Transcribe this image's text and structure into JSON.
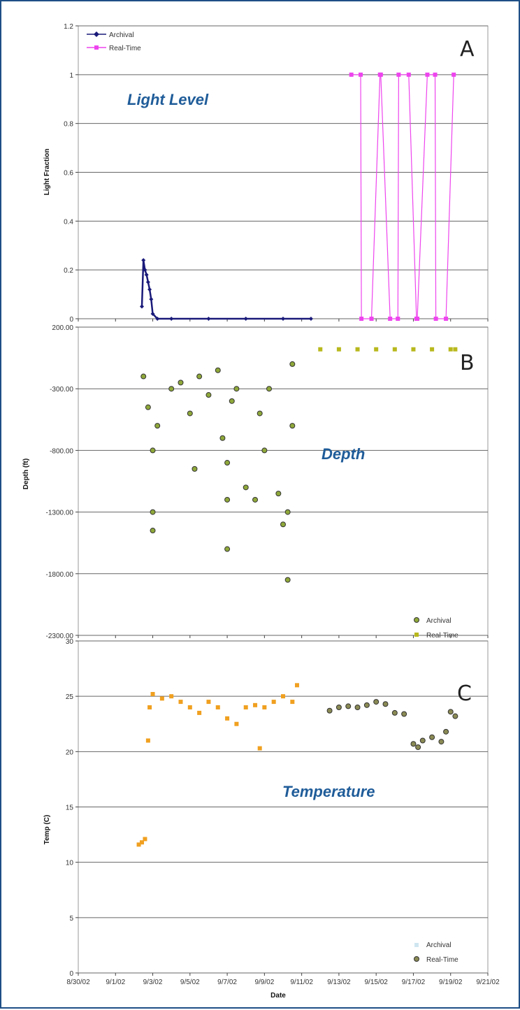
{
  "chart_data": [
    {
      "id": "A",
      "type": "line",
      "panel_letter": "A",
      "caption": "Light Level",
      "ylabel": "Light Fraction",
      "ylim": [
        0,
        1.2
      ],
      "yticks": [
        "0",
        "0.2",
        "0.4",
        "0.6",
        "0.8",
        "1",
        "1.2"
      ],
      "xlim": [
        "2002-08-30",
        "2002-09-21"
      ],
      "grid": true,
      "legend_position": "top-left",
      "series": [
        {
          "name": "Archival",
          "color": "#1a1a7a",
          "x": [
            "2002-09-02 10:00",
            "2002-09-02 12:00",
            "2002-09-02 14:00",
            "2002-09-02 16:00",
            "2002-09-02 18:00",
            "2002-09-02 20:00",
            "2002-09-02 22:00",
            "2002-09-03 00:00",
            "2002-09-03 06:00",
            "2002-09-04 00:00",
            "2002-09-06 00:00",
            "2002-09-08 00:00",
            "2002-09-10 00:00",
            "2002-09-11 12:00"
          ],
          "y": [
            0.05,
            0.24,
            0.2,
            0.18,
            0.15,
            0.12,
            0.08,
            0.02,
            0,
            0,
            0,
            0,
            0,
            0
          ]
        },
        {
          "name": "Real-Time",
          "color": "#ee44ee",
          "x": [
            "2002-09-13 16:00",
            "2002-09-14 04:00",
            "2002-09-14 05:00",
            "2002-09-14 18:00",
            "2002-09-15 05:00",
            "2002-09-15 06:00",
            "2002-09-15 18:00",
            "2002-09-16 04:00",
            "2002-09-16 05:00",
            "2002-09-16 18:00",
            "2002-09-17 04:00",
            "2002-09-17 05:00",
            "2002-09-17 18:00",
            "2002-09-18 04:00",
            "2002-09-18 05:00",
            "2002-09-18 18:00",
            "2002-09-19 04:00"
          ],
          "y": [
            1,
            1,
            0,
            0,
            1,
            1,
            0,
            0,
            1,
            1,
            0,
            0,
            1,
            1,
            0,
            0,
            1
          ]
        }
      ]
    },
    {
      "id": "B",
      "type": "scatter",
      "panel_letter": "B",
      "caption": "Depth",
      "ylabel": "Depth (ft)",
      "ylim": [
        -2300,
        200
      ],
      "yticks": [
        "-2300.00",
        "-1800.00",
        "-1300.00",
        "-800.00",
        "-300.00",
        "200.00"
      ],
      "xlim": [
        "2002-08-30",
        "2002-09-21"
      ],
      "grid": true,
      "legend_position": "bottom-right",
      "series": [
        {
          "name": "Archival",
          "color": "#8fa83a",
          "x": [
            "2002-09-02 12:00",
            "2002-09-02 18:00",
            "2002-09-03 00:00",
            "2002-09-03 00:00",
            "2002-09-03 00:00",
            "2002-09-03 06:00",
            "2002-09-04 00:00",
            "2002-09-04 12:00",
            "2002-09-05 00:00",
            "2002-09-05 06:00",
            "2002-09-05 12:00",
            "2002-09-06 00:00",
            "2002-09-06 12:00",
            "2002-09-06 18:00",
            "2002-09-07 00:00",
            "2002-09-07 00:00",
            "2002-09-07 00:00",
            "2002-09-07 06:00",
            "2002-09-07 12:00",
            "2002-09-08 00:00",
            "2002-09-08 12:00",
            "2002-09-08 18:00",
            "2002-09-09 00:00",
            "2002-09-09 06:00",
            "2002-09-09 18:00",
            "2002-09-10 00:00",
            "2002-09-10 06:00",
            "2002-09-10 06:00",
            "2002-09-10 12:00",
            "2002-09-10 12:00"
          ],
          "y": [
            -200,
            -450,
            -800,
            -1300,
            -1450,
            -600,
            -300,
            -250,
            -500,
            -950,
            -200,
            -350,
            -150,
            -700,
            -900,
            -1200,
            -1600,
            -400,
            -300,
            -1100,
            -1200,
            -500,
            -800,
            -300,
            -1150,
            -1400,
            -1300,
            -1850,
            -600,
            -100
          ]
        },
        {
          "name": "Real-Time",
          "color": "#b8b81e",
          "x": [
            "2002-09-12 00:00",
            "2002-09-13 00:00",
            "2002-09-14 00:00",
            "2002-09-15 00:00",
            "2002-09-16 00:00",
            "2002-09-17 00:00",
            "2002-09-18 00:00",
            "2002-09-19 00:00",
            "2002-09-19 06:00"
          ],
          "y": [
            20,
            20,
            20,
            20,
            20,
            20,
            20,
            20,
            20
          ]
        }
      ]
    },
    {
      "id": "C",
      "type": "scatter",
      "panel_letter": "C",
      "caption": "Temperature",
      "ylabel": "Temp (C)",
      "xlabel": "Date",
      "ylim": [
        0,
        30
      ],
      "yticks": [
        "0",
        "5",
        "10",
        "15",
        "20",
        "25",
        "30"
      ],
      "xlim": [
        "2002-08-30",
        "2002-09-21"
      ],
      "xticks": [
        "8/30/02",
        "9/1/02",
        "9/3/02",
        "9/5/02",
        "9/7/02",
        "9/9/02",
        "9/11/02",
        "9/13/02",
        "9/15/02",
        "9/17/02",
        "9/19/02",
        "9/21/02"
      ],
      "grid": true,
      "legend_position": "bottom-right",
      "series": [
        {
          "name": "Archival",
          "color": "#f0a020",
          "x": [
            "2002-09-02 06:00",
            "2002-09-02 10:00",
            "2002-09-02 14:00",
            "2002-09-02 18:00",
            "2002-09-02 20:00",
            "2002-09-03 00:00",
            "2002-09-03 12:00",
            "2002-09-04 00:00",
            "2002-09-04 12:00",
            "2002-09-05 00:00",
            "2002-09-05 12:00",
            "2002-09-06 00:00",
            "2002-09-06 12:00",
            "2002-09-07 00:00",
            "2002-09-07 12:00",
            "2002-09-08 00:00",
            "2002-09-08 12:00",
            "2002-09-08 18:00",
            "2002-09-09 00:00",
            "2002-09-09 12:00",
            "2002-09-10 00:00",
            "2002-09-10 12:00",
            "2002-09-10 18:00"
          ],
          "y": [
            11.6,
            11.8,
            12.1,
            21.0,
            24.0,
            25.2,
            24.8,
            25.0,
            24.5,
            24.0,
            23.5,
            24.5,
            24.0,
            23.0,
            22.5,
            24.0,
            24.2,
            20.3,
            24.0,
            24.5,
            25.0,
            24.5,
            26.0
          ]
        },
        {
          "name": "Real-Time",
          "color": "#8a8a55",
          "x": [
            "2002-09-12 12:00",
            "2002-09-13 00:00",
            "2002-09-13 12:00",
            "2002-09-14 00:00",
            "2002-09-14 12:00",
            "2002-09-15 00:00",
            "2002-09-15 12:00",
            "2002-09-16 00:00",
            "2002-09-16 12:00",
            "2002-09-17 00:00",
            "2002-09-17 06:00",
            "2002-09-17 12:00",
            "2002-09-18 00:00",
            "2002-09-18 12:00",
            "2002-09-18 18:00",
            "2002-09-19 00:00",
            "2002-09-19 06:00"
          ],
          "y": [
            23.7,
            24.0,
            24.1,
            24.0,
            24.2,
            24.5,
            24.3,
            23.5,
            23.4,
            20.7,
            20.4,
            21.0,
            21.3,
            20.9,
            21.8,
            23.6,
            23.2
          ]
        }
      ]
    }
  ]
}
